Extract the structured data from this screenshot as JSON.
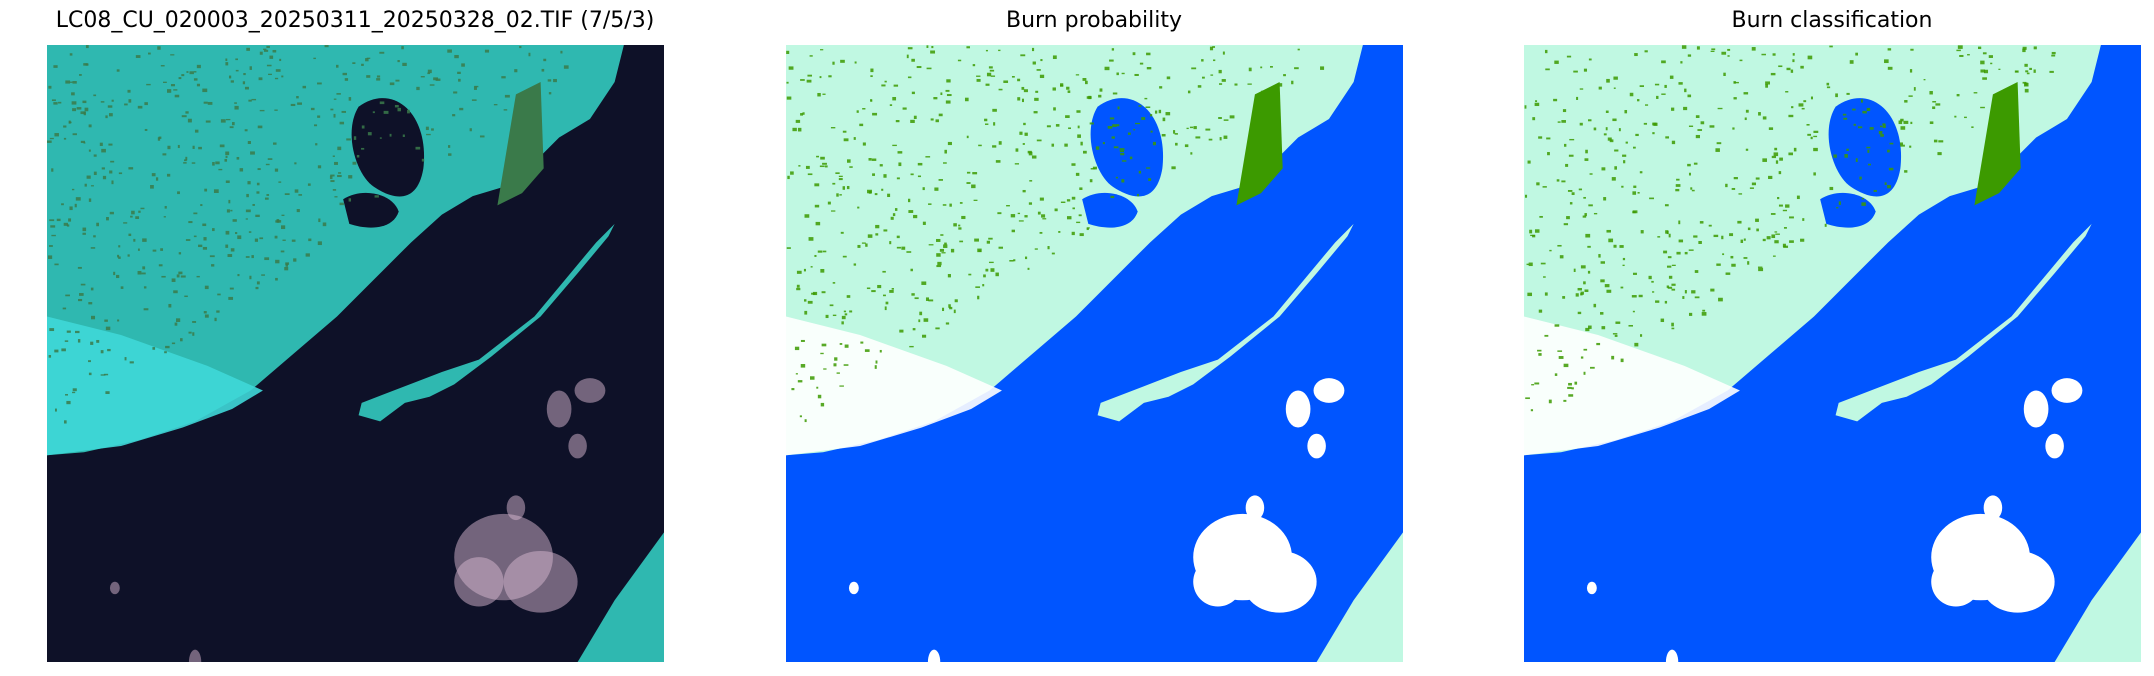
{
  "panels": [
    {
      "title": "LC08_CU_020003_20250311_20250328_02.TIF (7/5/3)",
      "kind": "false-color composite",
      "palette": {
        "land": "#2fb8b0",
        "land_dark": "#3a7a4a",
        "land_bright": "#27f0f0",
        "water": "#0e1128",
        "snow": "#3fd8d8",
        "cloud": "#d8b8d0"
      }
    },
    {
      "title": "Burn probability",
      "kind": "burn probability map",
      "palette": {
        "land": "#c0f8e2",
        "land_dark": "#3c9a00",
        "land_bright": "#c0f8e2",
        "water": "#0055ff",
        "snow": "#ffffff",
        "cloud": "#ffffff"
      }
    },
    {
      "title": "Burn classification",
      "kind": "burn classification map",
      "palette": {
        "land": "#c0f8e2",
        "land_dark": "#3c9a00",
        "land_bright": "#c0f8e2",
        "water": "#0055ff",
        "snow": "#ffffff",
        "cloud": "#ffffff"
      }
    }
  ]
}
